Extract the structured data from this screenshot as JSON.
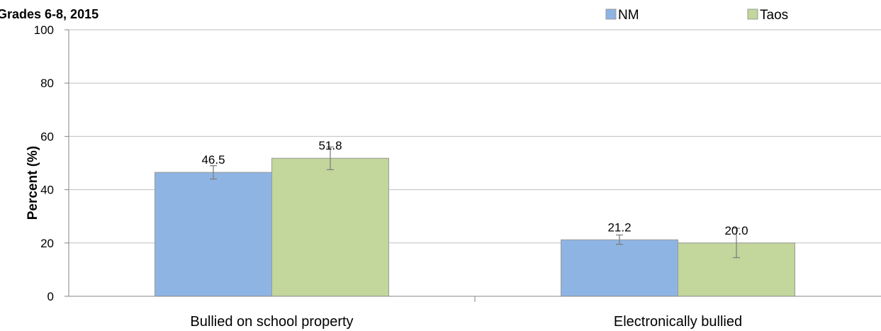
{
  "chart_data": {
    "type": "bar",
    "title": "Grades 6-8, 2015",
    "xlabel": "",
    "ylabel": "Percent (%)",
    "ylim": [
      0,
      100
    ],
    "yticks": [
      0,
      20,
      40,
      60,
      80,
      100
    ],
    "grid": true,
    "legend_position": "top-right",
    "categories": [
      "Bullied on school property",
      "Electronically bullied"
    ],
    "series": [
      {
        "name": "NM",
        "color": "#8EB4E3",
        "values": [
          46.5,
          21.2
        ],
        "labels": [
          "46.5",
          "21.2"
        ],
        "ci_low": [
          44.0,
          19.5
        ],
        "ci_high": [
          49.0,
          23.0
        ]
      },
      {
        "name": "Taos",
        "color": "#C3D69B",
        "values": [
          51.8,
          20.0
        ],
        "labels": [
          "51.8",
          "20.0"
        ],
        "ci_low": [
          47.5,
          14.5
        ],
        "ci_high": [
          56.0,
          25.5
        ]
      }
    ]
  }
}
